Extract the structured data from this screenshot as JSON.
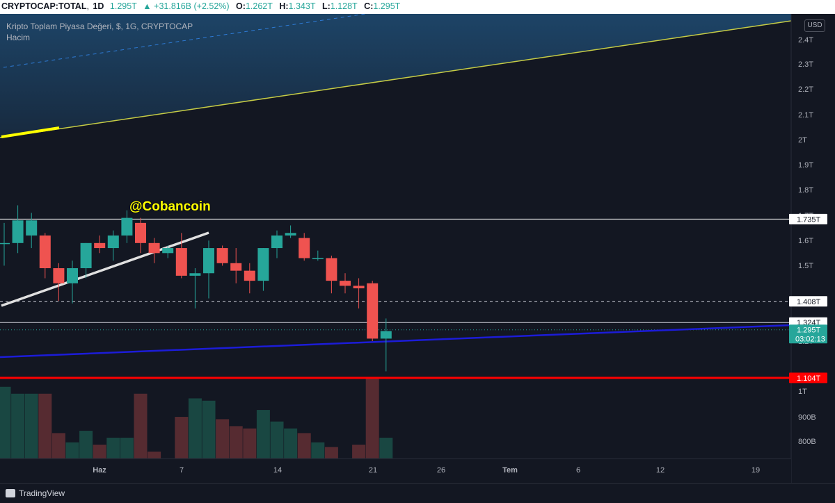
{
  "header": {
    "symbol": "CRYPTOCAP:TOTAL",
    "interval": "1D",
    "last": "1.295T",
    "change": "▲ +31.816B (+2.52%)",
    "o_label": "O:",
    "o": "1.262T",
    "h_label": "H:",
    "h": "1.343T",
    "l_label": "L:",
    "l": "1.128T",
    "c_label": "C:",
    "c": "1.295T"
  },
  "legend": {
    "title": "Kripto Toplam Piyasa Değeri, $, 1G, CRYPTOCAP",
    "volume": "Hacim"
  },
  "watermark": "@Cobancoin",
  "currency_button": "USD",
  "footer": {
    "brand": "TradingView"
  },
  "colors": {
    "up": "#26a69a",
    "down": "#ef5350",
    "background": "#131722"
  },
  "chart_data": {
    "type": "candlestick",
    "x_ticks": [
      "Haz",
      "7",
      "14",
      "21",
      "26",
      "Tem",
      "6",
      "12",
      "19"
    ],
    "y_ticks": [
      "2.4T",
      "2.3T",
      "2.2T",
      "2.1T",
      "2T",
      "1.9T",
      "1.8T",
      "1.7T",
      "1.6T",
      "1.5T",
      "1.2T",
      "1T",
      "900B",
      "800B"
    ],
    "price_labels": [
      {
        "text": "1.735T",
        "value": 1.735,
        "style": "white"
      },
      {
        "text": "1.408T",
        "value": 1.408,
        "style": "white"
      },
      {
        "text": "1.324T",
        "value": 1.324,
        "style": "white"
      },
      {
        "text": "1.295T",
        "sub": "03:02:13",
        "value": 1.295,
        "style": "green"
      },
      {
        "text": "1.104T",
        "value": 1.104,
        "style": "red"
      }
    ],
    "candles": [
      {
        "o": 1.64,
        "h": 1.72,
        "l": 1.55,
        "c": 1.64
      },
      {
        "o": 1.64,
        "h": 1.79,
        "l": 1.6,
        "c": 1.73
      },
      {
        "o": 1.67,
        "h": 1.76,
        "l": 1.62,
        "c": 1.73
      },
      {
        "o": 1.67,
        "h": 1.68,
        "l": 1.5,
        "c": 1.54
      },
      {
        "o": 1.54,
        "h": 1.56,
        "l": 1.41,
        "c": 1.48
      },
      {
        "o": 1.48,
        "h": 1.57,
        "l": 1.4,
        "c": 1.54
      },
      {
        "o": 1.54,
        "h": 1.64,
        "l": 1.5,
        "c": 1.64
      },
      {
        "o": 1.64,
        "h": 1.67,
        "l": 1.6,
        "c": 1.62
      },
      {
        "o": 1.62,
        "h": 1.69,
        "l": 1.57,
        "c": 1.67
      },
      {
        "o": 1.67,
        "h": 1.77,
        "l": 1.64,
        "c": 1.74
      },
      {
        "o": 1.72,
        "h": 1.74,
        "l": 1.6,
        "c": 1.64
      },
      {
        "o": 1.64,
        "h": 1.66,
        "l": 1.56,
        "c": 1.6
      },
      {
        "o": 1.6,
        "h": 1.63,
        "l": 1.58,
        "c": 1.62
      },
      {
        "o": 1.62,
        "h": 1.68,
        "l": 1.5,
        "c": 1.51
      },
      {
        "o": 1.51,
        "h": 1.54,
        "l": 1.38,
        "c": 1.52
      },
      {
        "o": 1.52,
        "h": 1.65,
        "l": 1.42,
        "c": 1.62
      },
      {
        "o": 1.62,
        "h": 1.63,
        "l": 1.55,
        "c": 1.56
      },
      {
        "o": 1.56,
        "h": 1.62,
        "l": 1.48,
        "c": 1.53
      },
      {
        "o": 1.53,
        "h": 1.56,
        "l": 1.44,
        "c": 1.49
      },
      {
        "o": 1.49,
        "h": 1.62,
        "l": 1.45,
        "c": 1.62
      },
      {
        "o": 1.62,
        "h": 1.69,
        "l": 1.58,
        "c": 1.67
      },
      {
        "o": 1.67,
        "h": 1.71,
        "l": 1.66,
        "c": 1.68
      },
      {
        "o": 1.66,
        "h": 1.68,
        "l": 1.57,
        "c": 1.58
      },
      {
        "o": 1.58,
        "h": 1.61,
        "l": 1.57,
        "c": 1.58
      },
      {
        "o": 1.58,
        "h": 1.59,
        "l": 1.44,
        "c": 1.49
      },
      {
        "o": 1.49,
        "h": 1.52,
        "l": 1.44,
        "c": 1.47
      },
      {
        "o": 1.47,
        "h": 1.5,
        "l": 1.38,
        "c": 1.46
      },
      {
        "o": 1.48,
        "h": 1.49,
        "l": 1.25,
        "c": 1.26
      },
      {
        "o": 1.26,
        "h": 1.34,
        "l": 1.13,
        "c": 1.29
      }
    ],
    "volume": [
      0.81,
      0.78,
      0.78,
      0.78,
      0.61,
      0.57,
      0.62,
      0.56,
      0.59,
      0.59,
      0.78,
      0.53,
      0.41,
      0.68,
      0.76,
      0.75,
      0.67,
      0.64,
      0.63,
      0.71,
      0.66,
      0.63,
      0.61,
      0.57,
      0.55,
      0.48,
      0.56,
      0.85,
      0.59
    ],
    "levels": [
      1.735,
      1.408,
      1.324,
      1.104
    ]
  }
}
